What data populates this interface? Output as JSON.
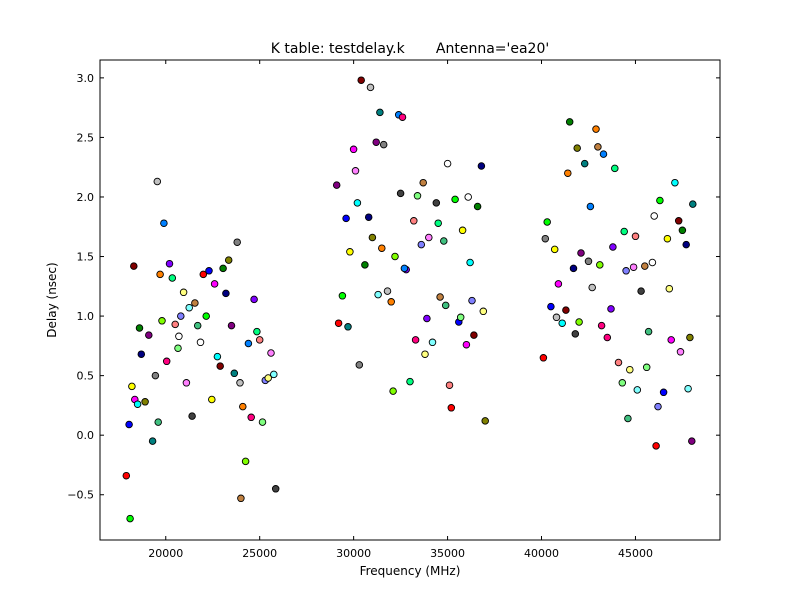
{
  "chart_data": {
    "type": "scatter",
    "title": "K table: testdelay.k       Antenna='ea20'",
    "xlabel": "Frequency (MHz)",
    "ylabel": "Delay (nsec)",
    "xlim": [
      16500,
      49500
    ],
    "ylim": [
      -0.88,
      3.15
    ],
    "xticks": [
      20000,
      25000,
      30000,
      35000,
      40000,
      45000
    ],
    "yticks": [
      -0.5,
      0.0,
      0.5,
      1.0,
      1.5,
      2.0,
      2.5,
      3.0
    ],
    "xtick_labels": [
      "20000",
      "25000",
      "30000",
      "35000",
      "40000",
      "45000"
    ],
    "ytick_labels": [
      "−0.5",
      "0.0",
      "0.5",
      "1.0",
      "1.5",
      "2.0",
      "2.5",
      "3.0"
    ],
    "grid": false,
    "legend": "none",
    "point_colors": [
      "#ff0000",
      "#00ff00",
      "#0000ff",
      "#ffff00",
      "#ff00ff",
      "#00ffff",
      "#800000",
      "#008000",
      "#000080",
      "#808000",
      "#800080",
      "#008080",
      "#808080",
      "#c0c0c0",
      "#ff8000",
      "#80ff00",
      "#0080ff",
      "#ff0080",
      "#8000ff",
      "#00ff80",
      "#ff8080",
      "#80ff80",
      "#8080ff",
      "#ffff80",
      "#ff80ff",
      "#80ffff",
      "#404040",
      "#c08040",
      "#40c080",
      "#ffffff"
    ],
    "points": [
      [
        17900,
        -0.34
      ],
      [
        18100,
        -0.7
      ],
      [
        18050,
        0.09
      ],
      [
        18200,
        0.41
      ],
      [
        18350,
        0.3
      ],
      [
        18500,
        0.26
      ],
      [
        18300,
        1.42
      ],
      [
        18600,
        0.9
      ],
      [
        18700,
        0.68
      ],
      [
        18900,
        0.28
      ],
      [
        19100,
        0.84
      ],
      [
        19300,
        -0.05
      ],
      [
        19450,
        0.5
      ],
      [
        19550,
        2.13
      ],
      [
        19700,
        1.35
      ],
      [
        19800,
        0.96
      ],
      [
        19900,
        1.78
      ],
      [
        20050,
        0.62
      ],
      [
        20200,
        1.44
      ],
      [
        20350,
        1.32
      ],
      [
        20500,
        0.93
      ],
      [
        20650,
        0.73
      ],
      [
        20800,
        1.0
      ],
      [
        20950,
        1.2
      ],
      [
        21100,
        0.44
      ],
      [
        21250,
        1.07
      ],
      [
        21400,
        0.16
      ],
      [
        21550,
        1.11
      ],
      [
        21700,
        0.92
      ],
      [
        21850,
        0.78
      ],
      [
        22000,
        1.35
      ],
      [
        22150,
        1.0
      ],
      [
        22300,
        1.38
      ],
      [
        22450,
        0.3
      ],
      [
        22600,
        1.27
      ],
      [
        22750,
        0.66
      ],
      [
        22900,
        0.58
      ],
      [
        23050,
        1.4
      ],
      [
        23200,
        1.19
      ],
      [
        23350,
        1.47
      ],
      [
        23500,
        0.92
      ],
      [
        23650,
        0.52
      ],
      [
        23800,
        1.62
      ],
      [
        23950,
        0.44
      ],
      [
        24100,
        0.24
      ],
      [
        24250,
        -0.22
      ],
      [
        24400,
        0.77
      ],
      [
        24550,
        0.15
      ],
      [
        24700,
        1.14
      ],
      [
        24850,
        0.87
      ],
      [
        25000,
        0.8
      ],
      [
        25150,
        0.11
      ],
      [
        25300,
        0.46
      ],
      [
        25450,
        0.48
      ],
      [
        25600,
        0.69
      ],
      [
        25750,
        0.51
      ],
      [
        25850,
        -0.45
      ],
      [
        24000,
        -0.53
      ],
      [
        19600,
        0.11
      ],
      [
        20700,
        0.83
      ],
      [
        29200,
        0.94
      ],
      [
        29400,
        1.17
      ],
      [
        29600,
        1.82
      ],
      [
        29800,
        1.54
      ],
      [
        30000,
        2.4
      ],
      [
        30200,
        1.95
      ],
      [
        30400,
        2.98
      ],
      [
        30600,
        1.43
      ],
      [
        30800,
        1.83
      ],
      [
        31000,
        1.66
      ],
      [
        31200,
        2.46
      ],
      [
        31400,
        2.71
      ],
      [
        31600,
        2.44
      ],
      [
        31800,
        1.21
      ],
      [
        32000,
        1.12
      ],
      [
        32200,
        1.5
      ],
      [
        32400,
        2.69
      ],
      [
        32600,
        2.67
      ],
      [
        32800,
        1.39
      ],
      [
        33000,
        0.45
      ],
      [
        33200,
        1.8
      ],
      [
        33400,
        2.01
      ],
      [
        33600,
        1.6
      ],
      [
        33800,
        0.68
      ],
      [
        34000,
        1.66
      ],
      [
        34200,
        0.78
      ],
      [
        34400,
        1.95
      ],
      [
        34600,
        1.16
      ],
      [
        34800,
        1.63
      ],
      [
        35000,
        2.28
      ],
      [
        35200,
        0.23
      ],
      [
        35400,
        1.98
      ],
      [
        35600,
        0.95
      ],
      [
        35800,
        1.72
      ],
      [
        36000,
        0.76
      ],
      [
        36200,
        1.45
      ],
      [
        36400,
        0.84
      ],
      [
        36600,
        1.92
      ],
      [
        36800,
        2.26
      ],
      [
        37000,
        0.12
      ],
      [
        29100,
        2.1
      ],
      [
        29700,
        0.91
      ],
      [
        30300,
        0.59
      ],
      [
        30900,
        2.92
      ],
      [
        31500,
        1.57
      ],
      [
        32100,
        0.37
      ],
      [
        32700,
        1.4
      ],
      [
        33300,
        0.8
      ],
      [
        33900,
        0.98
      ],
      [
        34500,
        1.78
      ],
      [
        35100,
        0.42
      ],
      [
        35700,
        0.99
      ],
      [
        36300,
        1.13
      ],
      [
        36900,
        1.04
      ],
      [
        30100,
        2.22
      ],
      [
        31300,
        1.18
      ],
      [
        32500,
        2.03
      ],
      [
        33700,
        2.12
      ],
      [
        34900,
        1.09
      ],
      [
        36100,
        2.0
      ],
      [
        40100,
        0.65
      ],
      [
        40300,
        1.79
      ],
      [
        40500,
        1.08
      ],
      [
        40700,
        1.56
      ],
      [
        40900,
        1.27
      ],
      [
        41100,
        0.94
      ],
      [
        41300,
        1.05
      ],
      [
        41500,
        2.63
      ],
      [
        41700,
        1.4
      ],
      [
        41900,
        2.41
      ],
      [
        42100,
        1.53
      ],
      [
        42300,
        2.28
      ],
      [
        42500,
        1.46
      ],
      [
        42700,
        1.24
      ],
      [
        42900,
        2.57
      ],
      [
        43100,
        1.43
      ],
      [
        43300,
        2.36
      ],
      [
        43500,
        0.82
      ],
      [
        43700,
        1.06
      ],
      [
        43900,
        2.24
      ],
      [
        44100,
        0.61
      ],
      [
        44300,
        0.44
      ],
      [
        44500,
        1.38
      ],
      [
        44700,
        0.55
      ],
      [
        44900,
        1.41
      ],
      [
        45100,
        0.38
      ],
      [
        45300,
        1.21
      ],
      [
        45500,
        1.42
      ],
      [
        45700,
        0.87
      ],
      [
        45900,
        1.45
      ],
      [
        46100,
        -0.09
      ],
      [
        46300,
        1.97
      ],
      [
        46500,
        0.36
      ],
      [
        46700,
        1.65
      ],
      [
        46900,
        0.8
      ],
      [
        47100,
        2.12
      ],
      [
        47300,
        1.8
      ],
      [
        47500,
        1.72
      ],
      [
        47700,
        1.6
      ],
      [
        47900,
        0.82
      ],
      [
        48000,
        -0.05
      ],
      [
        48050,
        1.94
      ],
      [
        40200,
        1.65
      ],
      [
        40800,
        0.99
      ],
      [
        41400,
        2.2
      ],
      [
        42000,
        0.95
      ],
      [
        42600,
        1.92
      ],
      [
        43200,
        0.92
      ],
      [
        43800,
        1.58
      ],
      [
        44400,
        1.71
      ],
      [
        45000,
        1.67
      ],
      [
        45600,
        0.57
      ],
      [
        46200,
        0.24
      ],
      [
        46800,
        1.23
      ],
      [
        47400,
        0.7
      ],
      [
        47800,
        0.39
      ],
      [
        41800,
        0.85
      ],
      [
        43000,
        2.42
      ],
      [
        44600,
        0.14
      ],
      [
        46000,
        1.84
      ]
    ]
  }
}
